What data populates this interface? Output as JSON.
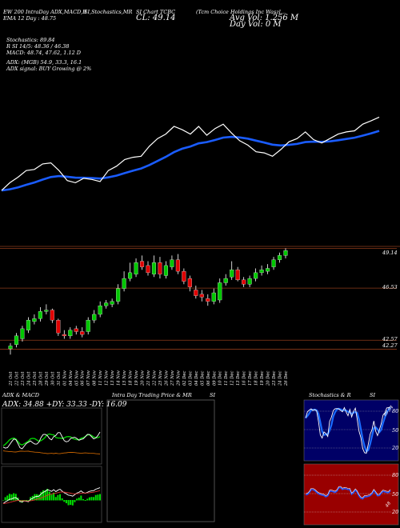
{
  "header": {
    "left_lines": [
      "EW 200 IntraDay ADX,MACD,R",
      "EMA 12 Day : 48.75"
    ],
    "mid1": "SI,Stochastics,MR",
    "mid2_line1": "SI Chart TCBC",
    "mid2_line2": "CL: 49.14",
    "right_line1": "(Tcm Choice Holdings Inc Waszl...",
    "right_line2": "Avg Vol: 1.256  M",
    "right_line3": "Day Vol: 0   M"
  },
  "indicators": [
    "Stochastics: 89.84",
    "R     SI 14/5: 48.36 / 46.38",
    "MACD: 48.74,  47.62,  1.12  D",
    "ADX:                    (MGB) 54.9,  33.3,  16.1",
    "ADX  signal:                    BUY Growing @ 2%"
  ],
  "price_axis": {
    "labels": [
      "49.14",
      "46.53",
      "42.57",
      "42.27"
    ]
  },
  "x_labels": [
    "21 Oct",
    "22 Oct",
    "23 Oct",
    "24 Oct",
    "25 Oct",
    "28 Oct",
    "29 Oct",
    "30 Oct",
    "31 Oct",
    "01 Nov",
    "04 Nov",
    "05 Nov",
    "06 Nov",
    "07 Nov",
    "08 Nov",
    "11 Nov",
    "12 Nov",
    "13 Nov",
    "14 Nov",
    "15 Nov",
    "18 Nov",
    "19 Nov",
    "20 Nov",
    "21 Nov",
    "22 Nov",
    "25 Nov",
    "26 Nov",
    "27 Nov",
    "29 Nov",
    "02 Dec",
    "03 Dec",
    "04 Dec",
    "05 Dec",
    "06 Dec",
    "09 Dec",
    "10 Dec",
    "11 Dec",
    "12 Dec",
    "13 Dec",
    "16 Dec",
    "17 Dec",
    "18 Dec",
    "19 Dec",
    "20 Dec",
    "23 Dec",
    "24 Dec",
    "26 Dec"
  ],
  "panels": {
    "adx_title": "ADX  & MACD",
    "adx_values": "ADX: 34.88  +DY: 33.33  -DY: 16.09",
    "intraday_title": "Intra Day Trading Price  & MR",
    "intraday_title_right": "SI",
    "stoch_title": "Stochastics & R",
    "stoch_title_right": "SI",
    "stoch_axis": [
      "80",
      "50",
      "20"
    ],
    "rsi_axis": [
      "80",
      "50",
      "20"
    ],
    "stoch_marker": "89.84",
    "rsi_marker": "48"
  },
  "colors": {
    "up": "#00c800",
    "down": "#e00000",
    "ema": "#1a5cff",
    "grid": "#8b3a1a"
  },
  "chart_data": {
    "type": "candlestick",
    "x": [
      "21 Oct",
      "22 Oct",
      "23 Oct",
      "24 Oct",
      "25 Oct",
      "28 Oct",
      "29 Oct",
      "30 Oct",
      "31 Oct",
      "01 Nov",
      "04 Nov",
      "05 Nov",
      "06 Nov",
      "07 Nov",
      "08 Nov",
      "11 Nov",
      "12 Nov",
      "13 Nov",
      "14 Nov",
      "15 Nov",
      "18 Nov",
      "19 Nov",
      "20 Nov",
      "21 Nov",
      "22 Nov",
      "25 Nov",
      "26 Nov",
      "27 Nov",
      "29 Nov",
      "02 Dec",
      "03 Dec",
      "04 Dec",
      "05 Dec",
      "06 Dec",
      "09 Dec",
      "10 Dec",
      "11 Dec",
      "12 Dec",
      "13 Dec",
      "16 Dec",
      "17 Dec",
      "18 Dec",
      "19 Dec",
      "20 Dec",
      "23 Dec",
      "24 Dec",
      "26 Dec"
    ],
    "open": [
      42.3,
      42.6,
      43.0,
      43.6,
      44.2,
      44.4,
      44.9,
      45.0,
      44.3,
      43.3,
      43.2,
      43.7,
      43.5,
      43.5,
      44.3,
      44.7,
      45.3,
      45.4,
      45.6,
      46.5,
      47.2,
      47.5,
      48.4,
      48.1,
      47.5,
      48.3,
      47.4,
      48.0,
      48.5,
      47.7,
      47.2,
      46.4,
      46.1,
      45.8,
      45.6,
      45.7,
      46.9,
      47.3,
      47.8,
      47.1,
      46.8,
      47.2,
      47.6,
      47.7,
      48.0,
      48.5,
      48.8
    ],
    "close": [
      42.5,
      43.2,
      43.7,
      44.3,
      44.4,
      44.9,
      45.0,
      44.3,
      43.4,
      43.2,
      43.6,
      43.5,
      43.3,
      44.3,
      44.7,
      45.3,
      45.5,
      45.6,
      46.5,
      47.2,
      47.6,
      48.3,
      48.0,
      47.6,
      48.3,
      47.5,
      48.1,
      48.5,
      47.7,
      47.0,
      46.6,
      46.0,
      45.9,
      45.6,
      46.2,
      46.9,
      47.2,
      47.8,
      47.1,
      46.8,
      47.2,
      47.6,
      47.8,
      47.9,
      48.5,
      48.8,
      49.14
    ],
    "high": [
      42.7,
      43.4,
      43.9,
      44.5,
      44.7,
      45.2,
      45.4,
      45.1,
      44.4,
      43.6,
      43.8,
      43.9,
      43.8,
      44.5,
      45.0,
      45.6,
      45.7,
      45.8,
      46.8,
      47.7,
      48.3,
      48.6,
      48.8,
      48.4,
      48.8,
      48.7,
      48.4,
      48.8,
      48.9,
      47.9,
      47.4,
      46.7,
      46.4,
      46.1,
      46.5,
      47.2,
      47.5,
      48.4,
      48.0,
      47.3,
      47.4,
      47.9,
      48.1,
      48.2,
      48.7,
      49.0,
      49.3
    ],
    "low": [
      41.9,
      42.4,
      42.8,
      43.4,
      44.0,
      44.2,
      44.7,
      44.1,
      43.2,
      43.0,
      43.0,
      43.3,
      43.1,
      43.3,
      44.1,
      44.5,
      45.1,
      45.2,
      45.4,
      46.3,
      47.0,
      47.3,
      47.8,
      47.4,
      47.3,
      47.2,
      47.2,
      47.8,
      47.5,
      46.8,
      46.3,
      45.8,
      45.6,
      45.3,
      45.4,
      45.5,
      46.7,
      47.1,
      47.0,
      46.6,
      46.6,
      47.0,
      47.4,
      47.5,
      47.8,
      48.3,
      48.6
    ],
    "price_range": [
      41.8,
      49.6
    ],
    "ema_label": "EMA 12 Day"
  }
}
